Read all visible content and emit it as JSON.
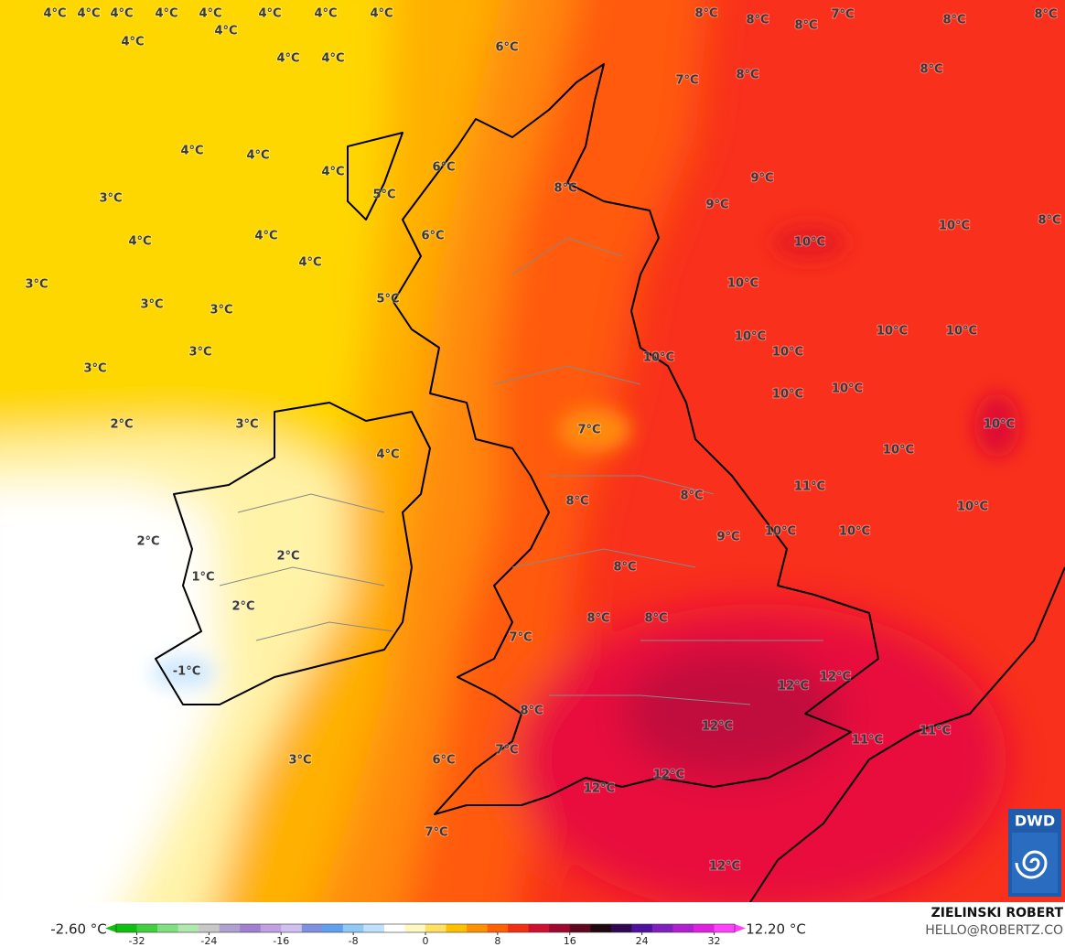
{
  "map": {
    "labels": [
      "4°C",
      "4°C",
      "4°C",
      "4°C",
      "4°C",
      "4°C",
      "4°C",
      "4°C",
      "4°C",
      "4°C",
      "4°C",
      "4°C",
      "6°C",
      "8°C",
      "8°C",
      "8°C",
      "7°C",
      "8°C",
      "8°C",
      "7°C",
      "8°C",
      "8°C",
      "4°C",
      "4°C",
      "4°C",
      "6°C",
      "5°C",
      "3°C",
      "9°C",
      "9°C",
      "4°C",
      "4°C",
      "4°C",
      "6°C",
      "8°C",
      "10°C",
      "8°C",
      "10°C",
      "3°C",
      "3°C",
      "3°C",
      "10°C",
      "5°C",
      "3°C",
      "3°C",
      "10°C",
      "10°C",
      "10°C",
      "10°C",
      "10°C",
      "10°C",
      "10°C",
      "2°C",
      "3°C",
      "7°C",
      "10°C",
      "4°C",
      "10°C",
      "11°C",
      "10°C",
      "8°C",
      "8°C",
      "2°C",
      "9°C",
      "10°C",
      "10°C",
      "2°C",
      "8°C",
      "1°C",
      "2°C",
      "8°C",
      "8°C",
      "7°C",
      "-1°C",
      "12°C",
      "12°C",
      "8°C",
      "12°C",
      "11°C",
      "11°C",
      "7°C",
      "3°C",
      "6°C",
      "12°C",
      "12°C",
      "7°C",
      "12°C"
    ],
    "logo": "DWD"
  },
  "colorbar": {
    "min_label": "-2.60 °C",
    "max_label": "12.20 °C",
    "lim": [
      -35.5,
      35.5
    ],
    "ticks": [
      -32,
      -24,
      -16,
      -8,
      0,
      8,
      16,
      24,
      32
    ]
  },
  "credits": {
    "name": "ZIELINSKI ROBERT",
    "contact": "HELLO@ROBERTZ.CO"
  }
}
